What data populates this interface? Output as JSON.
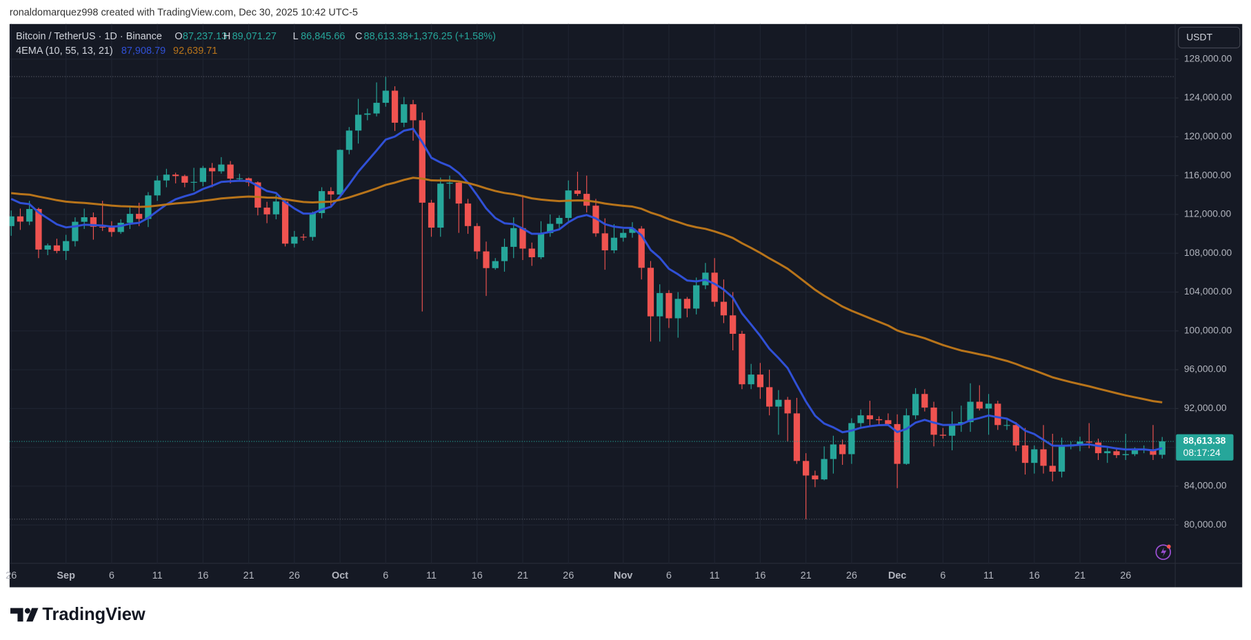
{
  "header": {
    "byline": "ronaldomarquez998 created with TradingView.com, Dec 30, 2025 10:42 UTC-5"
  },
  "footer": {
    "brand": "TradingView"
  },
  "chart_data": {
    "type": "candlestick",
    "currency": "USDT",
    "legend": {
      "symbol": "Bitcoin / TetherUS · 1D · Binance",
      "fields": [
        {
          "key": "O",
          "label": "87,237.13"
        },
        {
          "key": "H",
          "label": "89,071.27"
        },
        {
          "key": "L",
          "label": "86,845.66"
        },
        {
          "key": "C",
          "label": "88,613.38"
        }
      ],
      "change": "+1,376.25 (+1.58%)"
    },
    "last_price": {
      "label": "88,613.38",
      "countdown": "08:17:24"
    },
    "up_color": "#26a69a",
    "down_color": "#ef5350",
    "grid": true,
    "categories": [
      "26",
      null,
      null,
      null,
      null,
      null,
      "Sep",
      null,
      null,
      null,
      null,
      "6",
      null,
      null,
      null,
      null,
      "11",
      null,
      null,
      null,
      null,
      "16",
      null,
      null,
      null,
      null,
      "21",
      null,
      null,
      null,
      null,
      "26",
      null,
      null,
      null,
      null,
      "Oct",
      null,
      null,
      null,
      null,
      "6",
      null,
      null,
      null,
      null,
      "11",
      null,
      null,
      null,
      null,
      "16",
      null,
      null,
      null,
      null,
      "21",
      null,
      null,
      null,
      null,
      "26",
      null,
      null,
      null,
      null,
      null,
      "Nov",
      null,
      null,
      null,
      null,
      "6",
      null,
      null,
      null,
      null,
      "11",
      null,
      null,
      null,
      null,
      "16",
      null,
      null,
      null,
      null,
      "21",
      null,
      null,
      null,
      null,
      "26",
      null,
      null,
      null,
      null,
      "Dec",
      null,
      null,
      null,
      null,
      "6",
      null,
      null,
      null,
      null,
      "11",
      null,
      null,
      null,
      null,
      "16",
      null,
      null,
      null,
      null,
      "21",
      null,
      null,
      null,
      null,
      "26",
      null,
      null,
      null,
      null
    ],
    "open": [
      110800,
      111800,
      111260,
      112560,
      108380,
      108810,
      108240,
      109250,
      111240,
      111710,
      110730,
      110660,
      110190,
      111140,
      112060,
      111540,
      113960,
      115500,
      116100,
      115950,
      115270,
      115350,
      116790,
      116440,
      117140,
      115690,
      115720,
      115300,
      112700,
      112010,
      113330,
      108990,
      109700,
      109680,
      112140,
      114400,
      114050,
      118650,
      120640,
      122270,
      122400,
      123500,
      124750,
      121450,
      123350,
      121700,
      113210,
      110640,
      115170,
      115270,
      113120,
      110800,
      108190,
      106470,
      107190,
      108660,
      110590,
      108480,
      107590,
      110080,
      111030,
      111640,
      114470,
      114120,
      112900,
      110050,
      108300,
      109600,
      110100,
      110540,
      106500,
      101500,
      103900,
      101300,
      103300,
      102300,
      104700,
      106000,
      103000,
      101600,
      99700,
      94500,
      95500,
      94200,
      92200,
      92900,
      91500,
      86600,
      85100,
      84700,
      86800,
      88300,
      87300,
      90500,
      91300,
      90900,
      90800,
      90400,
      86300,
      91300,
      93500,
      92100,
      89300,
      89200,
      90400,
      90600,
      92700,
      92000,
      92500,
      90300,
      90300,
      88200,
      86400,
      87800,
      86100,
      85500,
      88100,
      88300,
      88600,
      88500,
      87400,
      87600,
      87200,
      87300,
      87800,
      87800,
      87237.13
    ],
    "high": [
      112400,
      112600,
      113400,
      112700,
      109000,
      109500,
      109900,
      111700,
      112600,
      112200,
      113400,
      111300,
      111500,
      112800,
      113200,
      114300,
      116000,
      116700,
      116300,
      116100,
      116800,
      117000,
      117300,
      117900,
      117500,
      116200,
      115800,
      115400,
      113300,
      114000,
      113500,
      110300,
      110000,
      112300,
      114800,
      114800,
      118700,
      121000,
      123900,
      122900,
      125600,
      126200,
      125200,
      124100,
      123800,
      122500,
      113500,
      115800,
      116000,
      115400,
      113600,
      111100,
      109200,
      107500,
      109500,
      111700,
      114000,
      109100,
      111300,
      112000,
      111900,
      115500,
      116400,
      116000,
      113600,
      111600,
      111000,
      110500,
      111200,
      110800,
      107200,
      104800,
      104200,
      104000,
      103500,
      105500,
      107000,
      107500,
      105300,
      104000,
      100000,
      96600,
      96700,
      96000,
      93900,
      93200,
      93100,
      87400,
      85600,
      88100,
      89200,
      88800,
      91000,
      91900,
      92800,
      91200,
      91500,
      91400,
      92000,
      94100,
      94000,
      92700,
      90000,
      91700,
      92300,
      94600,
      94400,
      93500,
      92800,
      91000,
      90600,
      90000,
      88200,
      90300,
      89400,
      89000,
      88600,
      89100,
      90500,
      88900,
      88000,
      88000,
      89400,
      88000,
      88200,
      90300,
      89071.27
    ],
    "low": [
      109800,
      110400,
      110900,
      107500,
      107800,
      108000,
      107300,
      108700,
      110500,
      109400,
      110300,
      109700,
      110000,
      110500,
      110800,
      110700,
      113400,
      114800,
      115200,
      114800,
      114400,
      114900,
      114800,
      116200,
      115200,
      115400,
      114900,
      111900,
      111100,
      111500,
      108700,
      108600,
      109300,
      109300,
      111600,
      112700,
      113900,
      118200,
      119300,
      121700,
      122100,
      123100,
      120600,
      121000,
      119600,
      102000,
      109700,
      109700,
      113600,
      110100,
      110000,
      107400,
      103600,
      106300,
      106100,
      107500,
      107300,
      106700,
      107400,
      109700,
      110600,
      111300,
      113900,
      112200,
      109700,
      106300,
      108000,
      109200,
      109600,
      105300,
      98900,
      98900,
      100300,
      99300,
      101400,
      101700,
      104300,
      102500,
      100800,
      98000,
      94000,
      94000,
      93000,
      91300,
      89300,
      88600,
      86300,
      80600,
      83900,
      84600,
      85300,
      86200,
      86300,
      90000,
      90200,
      90300,
      90300,
      83800,
      86200,
      90900,
      91700,
      88100,
      88900,
      87700,
      89600,
      89600,
      91800,
      89300,
      89800,
      89800,
      87600,
      85200,
      85300,
      85300,
      84500,
      84900,
      87800,
      87600,
      87900,
      86700,
      86400,
      86900,
      86700,
      87100,
      87400,
      86700,
      86845.66
    ],
    "close": [
      111800,
      111260,
      112560,
      108380,
      108810,
      108240,
      109250,
      111240,
      111710,
      110730,
      110660,
      110190,
      111140,
      112060,
      111540,
      113960,
      115500,
      116100,
      115950,
      115270,
      115350,
      116790,
      116440,
      117140,
      115690,
      115720,
      115300,
      112700,
      112010,
      113330,
      108990,
      109700,
      109680,
      112140,
      114400,
      114050,
      118650,
      120640,
      122270,
      122400,
      123500,
      124750,
      121450,
      123350,
      121700,
      113210,
      110640,
      115170,
      115270,
      113120,
      110800,
      108190,
      106470,
      107190,
      108660,
      110590,
      108480,
      107590,
      110080,
      111030,
      111640,
      114470,
      114120,
      112900,
      110050,
      108300,
      109600,
      110100,
      110540,
      106500,
      101500,
      103900,
      101300,
      103300,
      102300,
      104700,
      106000,
      103000,
      101600,
      99700,
      94500,
      95500,
      94200,
      92200,
      92900,
      91500,
      86600,
      85100,
      84700,
      86800,
      88300,
      87300,
      90500,
      91300,
      90900,
      90800,
      90400,
      86300,
      91300,
      93500,
      92100,
      89300,
      89200,
      90400,
      90600,
      92700,
      92000,
      92500,
      90300,
      90300,
      88200,
      86400,
      87800,
      86100,
      85500,
      88100,
      88300,
      88600,
      88500,
      87400,
      87600,
      87200,
      87300,
      87800,
      87800,
      87237.13,
      88613.38
    ],
    "indicator": {
      "label": "4EMA (10, 55, 13, 21)",
      "lines": [
        {
          "color": "#3050d6",
          "last_label": "87,908.79",
          "values": [
            113600,
            113174,
            113062,
            112210,
            111591,
            110981,
            110666,
            110770,
            110941,
            110903,
            110859,
            110737,
            110810,
            111038,
            111129,
            111644,
            112346,
            113029,
            113561,
            113872,
            114141,
            114623,
            114954,
            115352,
            115414,
            115470,
            115439,
            114941,
            114408,
            114212,
            113262,
            112614,
            112080,
            112091,
            112511,
            112791,
            113857,
            115091,
            116398,
            117490,
            118584,
            119706,
            120023,
            120629,
            120824,
            119438,
            117837,
            117352,
            116973,
            116272,
            115276,
            113986,
            112618,
            111630,
            111089,
            110998,
            110540,
            110003,
            110017,
            110201,
            110463,
            111192,
            111725,
            111939,
            111595,
            110995,
            110741,
            110624,
            110609,
            109861,
            108339,
            107531,
            106397,
            105833,
            105190,
            105101,
            105265,
            104853,
            104261,
            103431,
            101806,
            100658,
            99483,
            98157,
            97200,
            96163,
            94423,
            92726,
            91265,
            90452,
            90060,
            89558,
            89729,
            90015,
            90176,
            90290,
            90310,
            89580,
            89893,
            90549,
            90831,
            90552,
            90306,
            90323,
            90373,
            90797,
            91016,
            91286,
            91107,
            90960,
            90458,
            89719,
            89370,
            88775,
            88179,
            88165,
            88190,
            88265,
            88308,
            88143,
            88044,
            87890,
            87783,
            87786,
            87789,
            87689,
            87908.79
          ]
        },
        {
          "color": "#b8741a",
          "last_label": "92,639.71",
          "values": [
            114200,
            114095,
            114040,
            113838,
            113658,
            113465,
            113315,
            113241,
            113186,
            113098,
            113011,
            112910,
            112847,
            112819,
            112773,
            112815,
            112911,
            113025,
            113129,
            113205,
            113282,
            113407,
            113515,
            113644,
            113717,
            113789,
            113843,
            113802,
            113738,
            113723,
            113554,
            113416,
            113283,
            113242,
            113283,
            113310,
            113501,
            113756,
            114060,
            114358,
            114684,
            115043,
            115272,
            115560,
            115779,
            115687,
            115507,
            115495,
            115487,
            115402,
            115238,
            114986,
            114682,
            114415,
            114210,
            114081,
            113881,
            113656,
            113528,
            113439,
            113375,
            113414,
            113439,
            113420,
            113300,
            113121,
            112995,
            112892,
            112808,
            112583,
            112187,
            111891,
            111513,
            111220,
            110902,
            110681,
            110514,
            110246,
            109937,
            109572,
            109034,
            108551,
            108039,
            107474,
            106954,
            106402,
            105695,
            104960,
            104237,
            103614,
            103067,
            102504,
            102075,
            101690,
            101305,
            100930,
            100554,
            100045,
            99733,
            99510,
            99245,
            98890,
            98544,
            98253,
            97980,
            97792,
            97585,
            97403,
            97149,
            96904,
            96593,
            96229,
            95928,
            95577,
            95217,
            94963,
            94725,
            94506,
            94292,
            94046,
            93816,
            93580,
            93356,
            93158,
            92967,
            92762,
            92639.71
          ]
        }
      ]
    },
    "ylim": [
      76050,
      131620
    ],
    "yticks": [
      {
        "value": 80000,
        "label": "80,000.00"
      },
      {
        "value": 84000,
        "label": "84,000.00"
      },
      {
        "value": 88000,
        "label": "88,000.00"
      },
      {
        "value": 92000,
        "label": "92,000.00"
      },
      {
        "value": 96000,
        "label": "96,000.00"
      },
      {
        "value": 100000,
        "label": "100,000.00"
      },
      {
        "value": 104000,
        "label": "104,000.00"
      },
      {
        "value": 108000,
        "label": "108,000.00"
      },
      {
        "value": 112000,
        "label": "112,000.00"
      },
      {
        "value": 116000,
        "label": "116,000.00"
      },
      {
        "value": 120000,
        "label": "120,000.00"
      },
      {
        "value": 124000,
        "label": "124,000.00"
      },
      {
        "value": 128000,
        "label": "128,000.00"
      }
    ]
  }
}
